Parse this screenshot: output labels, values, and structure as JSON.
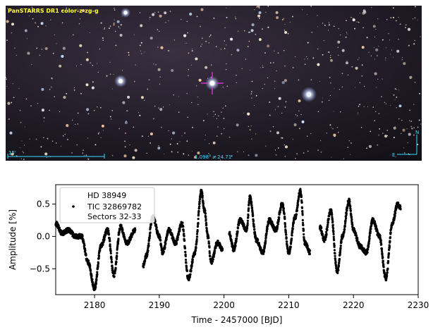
{
  "image_panel": {
    "survey_label": "PanSTARRS DR1 color-z-zg-g",
    "scale_label": "15'",
    "fov_label": "1.098° x 24.71'",
    "compass_north": "N",
    "compass_east": "E",
    "colors": {
      "label_yellow": "#ffff33",
      "overlay_cyan": "#33ddff",
      "marker_magenta": "#cc33cc"
    }
  },
  "chart_data": {
    "type": "scatter",
    "title": "",
    "xlabel": "Time - 2457000 [BJD]",
    "ylabel": "Amplitude [%]",
    "xlim": [
      2174,
      2230
    ],
    "ylim": [
      -0.9,
      0.8
    ],
    "xticks": [
      2180,
      2190,
      2200,
      2210,
      2220,
      2230
    ],
    "yticks": [
      -0.5,
      0.0,
      0.5
    ],
    "grid": false,
    "legend_position": "top-left",
    "legend": [
      "HD 38949",
      "TIC 32869782",
      "Sectors 32-33"
    ],
    "marker_color": "#000000",
    "segments": [
      {
        "x": [
          2174.0,
          2175.0,
          2176.0,
          2177.0,
          2178.0,
          2179.0,
          2180.0,
          2181.0,
          2182.0,
          2183.0,
          2184.0,
          2185.0,
          2186.3
        ],
        "y": [
          0.2,
          0.05,
          0.1,
          0.0,
          0.0,
          -0.4,
          -0.8,
          -0.15,
          0.1,
          -0.6,
          0.15,
          -0.1,
          0.1
        ]
      },
      {
        "x": [
          2187.5,
          2188.0,
          2189.0,
          2190.0,
          2190.5,
          2191.5,
          2192.5,
          2193.5,
          2194.5,
          2195.5,
          2196.5,
          2197.0,
          2197.5,
          2198.0,
          2199.0,
          2199.8
        ],
        "y": [
          -0.45,
          -0.3,
          0.3,
          0.0,
          -0.25,
          0.1,
          -0.1,
          0.2,
          -0.65,
          -0.25,
          0.7,
          0.4,
          0.0,
          -0.4,
          -0.1,
          -0.2
        ]
      },
      {
        "x": [
          2200.8,
          2201.5,
          2202.5,
          2203.5,
          2204.0,
          2205.0,
          2206.0,
          2207.0,
          2208.0,
          2209.0,
          2210.0,
          2211.0,
          2211.8,
          2212.5,
          2213.3
        ],
        "y": [
          0.05,
          -0.2,
          0.25,
          0.1,
          0.6,
          -0.05,
          -0.25,
          0.25,
          0.1,
          0.5,
          -0.25,
          0.3,
          0.7,
          -0.1,
          -0.25
        ]
      },
      {
        "x": [
          2214.8,
          2215.5,
          2216.5,
          2217.5,
          2218.3,
          2219.3,
          2220.0,
          2221.0,
          2222.0,
          2223.0,
          2224.0,
          2225.0,
          2226.0,
          2226.8,
          2227.3
        ],
        "y": [
          0.15,
          -0.05,
          0.4,
          -0.55,
          0.0,
          0.55,
          0.1,
          -0.15,
          -0.25,
          0.25,
          0.0,
          -0.65,
          0.2,
          0.5,
          0.45
        ]
      }
    ]
  }
}
